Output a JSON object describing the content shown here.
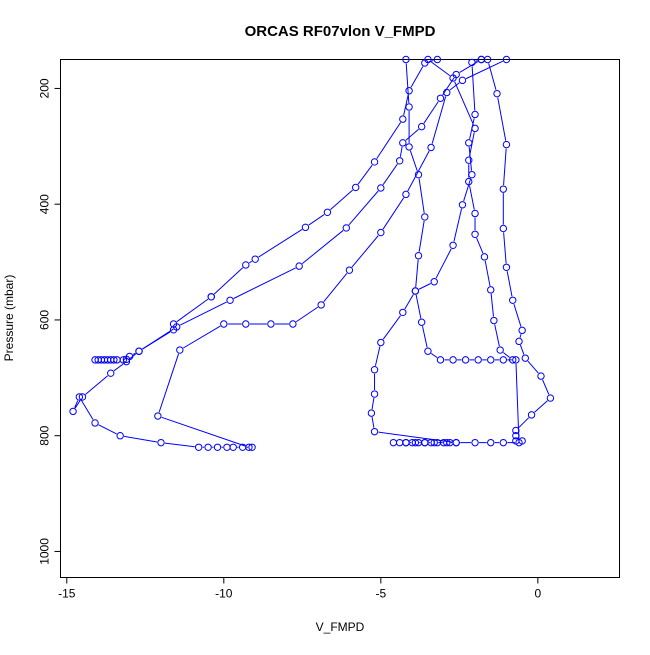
{
  "chart_data": {
    "type": "line",
    "title": "ORCAS RF07vlon V_FMPD",
    "xlabel": "V_FMPD",
    "ylabel": "Pressure (mbar)",
    "xlim": [
      -15.2,
      2.6
    ],
    "ylim": [
      1045,
      150
    ],
    "y_reversed": true,
    "grid": false,
    "legend": "none",
    "marker": "open-circle",
    "x_ticks": [
      -15,
      -10,
      -5,
      0
    ],
    "x_tick_labels": [
      "-15",
      "-10",
      "-5",
      "0"
    ],
    "y_ticks": [
      200,
      400,
      600,
      800,
      1000
    ],
    "y_tick_labels": [
      "200",
      "400",
      "600",
      "800",
      "1000"
    ],
    "color": "#0000ff",
    "series": [
      {
        "points": [
          [
            -9.1,
            820
          ],
          [
            -9.4,
            820
          ],
          [
            -9.7,
            820
          ],
          [
            -9.9,
            820
          ],
          [
            -10.2,
            820
          ],
          [
            -10.5,
            820
          ],
          [
            -10.8,
            820
          ],
          [
            -12.0,
            812
          ],
          [
            -13.3,
            800
          ],
          [
            -14.1,
            778
          ],
          [
            -14.6,
            733
          ],
          [
            -14.8,
            758
          ],
          [
            -14.5,
            733
          ],
          [
            -13.6,
            692
          ],
          [
            -13.1,
            672
          ],
          [
            -12.7,
            654
          ],
          [
            -11.6,
            617
          ],
          [
            -11.6,
            607
          ],
          [
            -10.4,
            560
          ],
          [
            -10.4,
            560
          ],
          [
            -9.3,
            505
          ],
          [
            -9.0,
            495
          ],
          [
            -7.4,
            440
          ],
          [
            -6.7,
            414
          ],
          [
            -5.8,
            371
          ],
          [
            -5.2,
            327
          ],
          [
            -4.3,
            253
          ],
          [
            -4.1,
            204
          ],
          [
            -3.6,
            156
          ],
          [
            -3.2,
            150
          ]
        ]
      },
      {
        "points": [
          [
            -14.1,
            669
          ],
          [
            -14.0,
            669
          ],
          [
            -13.9,
            669
          ],
          [
            -13.8,
            669
          ],
          [
            -13.7,
            669
          ],
          [
            -13.6,
            669
          ],
          [
            -13.5,
            669
          ],
          [
            -13.4,
            669
          ],
          [
            -13.2,
            669
          ],
          [
            -13.1,
            668
          ],
          [
            -13.0,
            663
          ],
          [
            -12.7,
            654
          ],
          [
            -11.5,
            612
          ],
          [
            -9.8,
            566
          ],
          [
            -7.6,
            507
          ],
          [
            -6.1,
            441
          ],
          [
            -5.0,
            372
          ],
          [
            -4.4,
            325
          ],
          [
            -4.3,
            294
          ],
          [
            -3.7,
            266
          ],
          [
            -3.1,
            217
          ],
          [
            -2.6,
            176
          ],
          [
            -1.8,
            150
          ]
        ]
      },
      {
        "points": [
          [
            -9.2,
            820
          ],
          [
            -12.1,
            766
          ],
          [
            -11.4,
            652
          ],
          [
            -10.0,
            607
          ],
          [
            -9.3,
            607
          ],
          [
            -8.5,
            607
          ],
          [
            -7.8,
            607
          ],
          [
            -6.9,
            574
          ],
          [
            -6.0,
            514
          ],
          [
            -5.0,
            449
          ],
          [
            -4.2,
            383
          ],
          [
            -3.4,
            302
          ],
          [
            -2.9,
            207
          ],
          [
            -2.4,
            186
          ],
          [
            -1.0,
            150
          ]
        ]
      },
      {
        "points": [
          [
            -0.7,
            809
          ],
          [
            -0.5,
            809
          ],
          [
            -0.7,
            800
          ],
          [
            -0.7,
            791
          ],
          [
            -0.2,
            764
          ],
          [
            0.4,
            735
          ],
          [
            0.1,
            697
          ],
          [
            -0.4,
            666
          ],
          [
            -0.6,
            637
          ],
          [
            -0.5,
            618
          ],
          [
            -0.8,
            566
          ],
          [
            -1.0,
            509
          ],
          [
            -1.1,
            442
          ],
          [
            -1.1,
            374
          ],
          [
            -1.0,
            297
          ],
          [
            -1.3,
            209
          ],
          [
            -1.6,
            150
          ]
        ]
      },
      {
        "points": [
          [
            -4.2,
            812
          ],
          [
            -3.9,
            812
          ],
          [
            -3.6,
            812
          ],
          [
            -3.3,
            812
          ],
          [
            -2.9,
            812
          ],
          [
            -2.6,
            812
          ],
          [
            -2.0,
            812
          ],
          [
            -1.5,
            812
          ],
          [
            -1.1,
            812
          ],
          [
            -0.6,
            812
          ],
          [
            -0.7,
            669
          ],
          [
            -1.1,
            669
          ],
          [
            -1.5,
            669
          ],
          [
            -1.9,
            669
          ],
          [
            -2.3,
            669
          ],
          [
            -2.7,
            669
          ],
          [
            -3.1,
            669
          ],
          [
            -3.5,
            654
          ],
          [
            -3.7,
            604
          ],
          [
            -3.9,
            550
          ],
          [
            -3.8,
            489
          ],
          [
            -3.6,
            422
          ],
          [
            -3.8,
            349
          ],
          [
            -4.1,
            301
          ],
          [
            -4.1,
            232
          ],
          [
            -4.2,
            150
          ]
        ]
      },
      {
        "points": [
          [
            -4.6,
            812
          ],
          [
            -4.4,
            812
          ],
          [
            -4.2,
            812
          ],
          [
            -4.0,
            812
          ],
          [
            -3.8,
            812
          ],
          [
            -3.6,
            812
          ],
          [
            -3.4,
            812
          ],
          [
            -3.2,
            812
          ],
          [
            -3.0,
            812
          ],
          [
            -2.8,
            812
          ],
          [
            -2.6,
            812
          ],
          [
            -5.2,
            793
          ],
          [
            -5.3,
            761
          ],
          [
            -5.2,
            728
          ],
          [
            -5.2,
            686
          ],
          [
            -5.0,
            639
          ],
          [
            -4.3,
            587
          ],
          [
            -3.9,
            550
          ],
          [
            -3.3,
            534
          ],
          [
            -2.7,
            471
          ],
          [
            -2.4,
            401
          ],
          [
            -2.1,
            349
          ],
          [
            -2.2,
            294
          ],
          [
            -2.0,
            245
          ],
          [
            -2.1,
            155
          ],
          [
            -1.8,
            150
          ]
        ]
      },
      {
        "points": [
          [
            -0.8,
            669
          ],
          [
            -1.2,
            652
          ],
          [
            -1.4,
            601
          ],
          [
            -1.5,
            548
          ],
          [
            -1.7,
            491
          ],
          [
            -2.0,
            452
          ],
          [
            -2.0,
            416
          ],
          [
            -2.2,
            361
          ],
          [
            -2.2,
            324
          ],
          [
            -2.0,
            269
          ],
          [
            -2.7,
            182
          ],
          [
            -3.5,
            150
          ]
        ]
      }
    ]
  }
}
